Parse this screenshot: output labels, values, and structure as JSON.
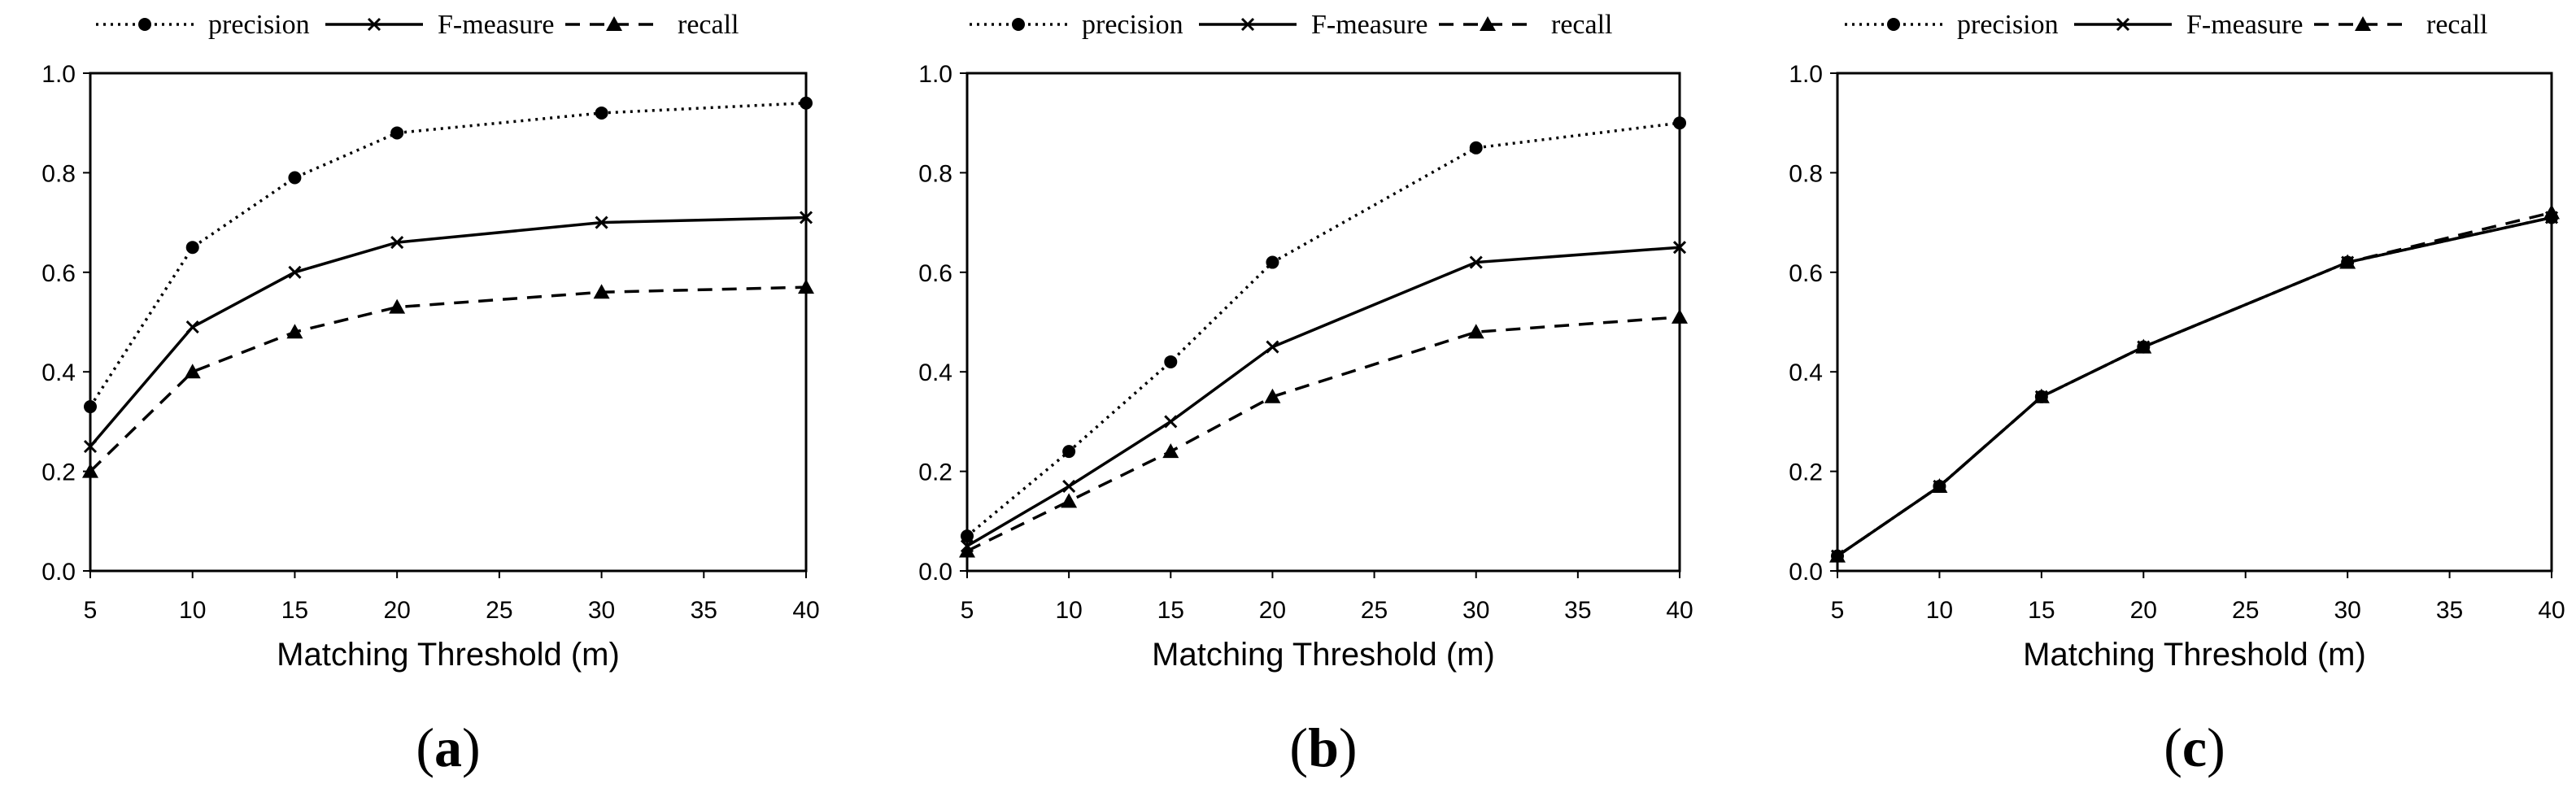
{
  "chart_data": [
    {
      "type": "line",
      "panel_label": "a",
      "xlabel": "Matching Threshold (m)",
      "ylabel": "",
      "x": [
        5,
        10,
        15,
        20,
        30,
        40
      ],
      "xlim": [
        5,
        40
      ],
      "xticks": [
        5,
        10,
        15,
        20,
        25,
        30,
        35,
        40
      ],
      "ylim": [
        0.0,
        1.0
      ],
      "yticks": [
        "0.0",
        "0.2",
        "0.4",
        "0.6",
        "0.8",
        "1.0"
      ],
      "grid": false,
      "legend_position": "top",
      "series": [
        {
          "name": "precision",
          "style": "dotted",
          "marker": "circle",
          "values": [
            0.33,
            0.65,
            0.79,
            0.88,
            0.92,
            0.94
          ]
        },
        {
          "name": "F-measure",
          "style": "solid",
          "marker": "x",
          "values": [
            0.25,
            0.49,
            0.6,
            0.66,
            0.7,
            0.71
          ]
        },
        {
          "name": "recall",
          "style": "dashed",
          "marker": "triangle",
          "values": [
            0.2,
            0.4,
            0.48,
            0.53,
            0.56,
            0.57
          ]
        }
      ]
    },
    {
      "type": "line",
      "panel_label": "b",
      "xlabel": "Matching Threshold (m)",
      "ylabel": "",
      "x": [
        5,
        10,
        15,
        20,
        30,
        40
      ],
      "xlim": [
        5,
        40
      ],
      "xticks": [
        5,
        10,
        15,
        20,
        25,
        30,
        35,
        40
      ],
      "ylim": [
        0.0,
        1.0
      ],
      "yticks": [
        "0.0",
        "0.2",
        "0.4",
        "0.6",
        "0.8",
        "1.0"
      ],
      "grid": false,
      "legend_position": "top",
      "series": [
        {
          "name": "precision",
          "style": "dotted",
          "marker": "circle",
          "values": [
            0.07,
            0.24,
            0.42,
            0.62,
            0.85,
            0.9
          ]
        },
        {
          "name": "F-measure",
          "style": "solid",
          "marker": "x",
          "values": [
            0.05,
            0.17,
            0.3,
            0.45,
            0.62,
            0.65
          ]
        },
        {
          "name": "recall",
          "style": "dashed",
          "marker": "triangle",
          "values": [
            0.04,
            0.14,
            0.24,
            0.35,
            0.48,
            0.51
          ]
        }
      ]
    },
    {
      "type": "line",
      "panel_label": "c",
      "xlabel": "Matching Threshold (m)",
      "ylabel": "",
      "x": [
        5,
        10,
        15,
        20,
        30,
        40
      ],
      "xlim": [
        5,
        40
      ],
      "xticks": [
        5,
        10,
        15,
        20,
        25,
        30,
        35,
        40
      ],
      "ylim": [
        0.0,
        1.0
      ],
      "yticks": [
        "0.0",
        "0.2",
        "0.4",
        "0.6",
        "0.8",
        "1.0"
      ],
      "grid": false,
      "legend_position": "top",
      "series": [
        {
          "name": "precision",
          "style": "dotted",
          "marker": "circle",
          "values": [
            0.03,
            0.17,
            0.35,
            0.45,
            0.62,
            0.71
          ]
        },
        {
          "name": "F-measure",
          "style": "solid",
          "marker": "x",
          "values": [
            0.03,
            0.17,
            0.35,
            0.45,
            0.62,
            0.71
          ]
        },
        {
          "name": "recall",
          "style": "dashed",
          "marker": "triangle",
          "values": [
            0.03,
            0.17,
            0.35,
            0.45,
            0.62,
            0.72
          ]
        }
      ]
    }
  ]
}
